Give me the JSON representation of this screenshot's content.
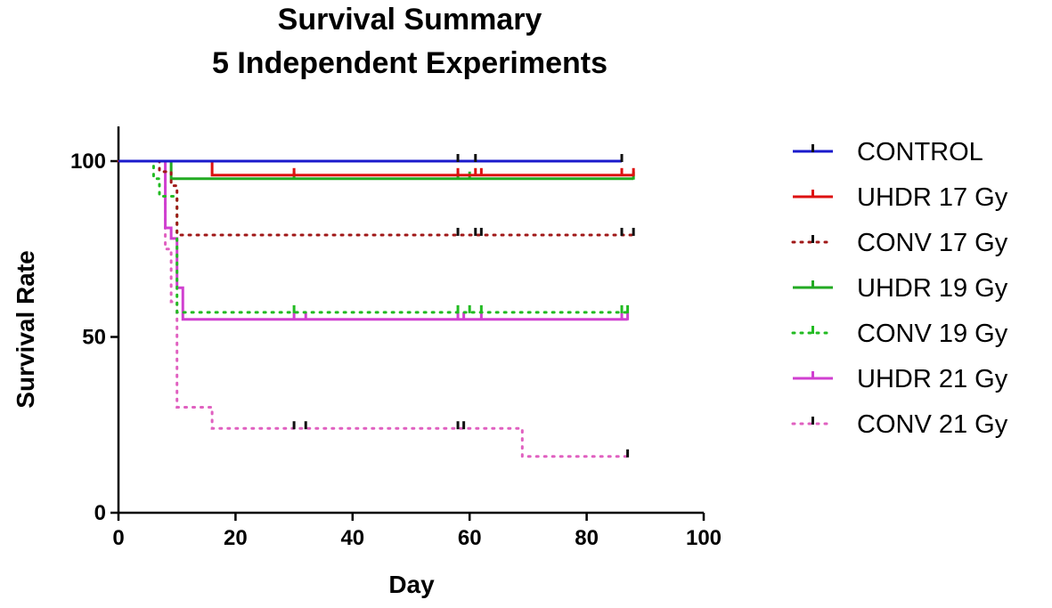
{
  "chart_data": {
    "type": "line",
    "subtype": "kaplan-meier-step",
    "title": "Survival Summary",
    "subtitle": "5  Independent  Experiments",
    "xlabel": "Day",
    "ylabel": "Survival Rate",
    "xlim": [
      0,
      100
    ],
    "ylim": [
      0,
      100
    ],
    "xticks": [
      0,
      20,
      40,
      60,
      80,
      100
    ],
    "yticks": [
      0,
      50,
      100
    ],
    "legend_position": "right",
    "series": [
      {
        "name": "CONTROL",
        "color": "#1a1acc",
        "style": "solid",
        "steps": [
          [
            0,
            100
          ],
          [
            86,
            100
          ]
        ],
        "censored": [
          [
            58,
            100
          ],
          [
            61,
            100
          ],
          [
            86,
            100
          ]
        ]
      },
      {
        "name": "UHDR 17 Gy",
        "color": "#dd1111",
        "style": "solid",
        "steps": [
          [
            0,
            100
          ],
          [
            16,
            96
          ],
          [
            88,
            96
          ]
        ],
        "censored": [
          [
            30,
            96
          ],
          [
            58,
            96
          ],
          [
            61,
            96
          ],
          [
            62,
            96
          ],
          [
            86,
            96
          ],
          [
            88,
            96
          ]
        ]
      },
      {
        "name": "CONV 17 Gy",
        "color": "#a01818",
        "style": "dotted",
        "steps": [
          [
            0,
            100
          ],
          [
            7,
            97
          ],
          [
            9,
            93
          ],
          [
            10,
            79
          ],
          [
            88,
            79
          ]
        ],
        "censored": [
          [
            58,
            79
          ],
          [
            61,
            79
          ],
          [
            62,
            79
          ],
          [
            86,
            79
          ],
          [
            88,
            79
          ]
        ]
      },
      {
        "name": "UHDR 19 Gy",
        "color": "#22aa22",
        "style": "solid",
        "steps": [
          [
            0,
            100
          ],
          [
            9,
            95
          ],
          [
            88,
            95
          ]
        ],
        "censored": [
          [
            30,
            95
          ],
          [
            58,
            95
          ],
          [
            60,
            95
          ],
          [
            88,
            95
          ]
        ]
      },
      {
        "name": "CONV 19 Gy",
        "color": "#22bb22",
        "style": "dotted",
        "steps": [
          [
            0,
            100
          ],
          [
            6,
            95
          ],
          [
            7,
            90
          ],
          [
            10,
            57
          ],
          [
            87,
            57
          ]
        ],
        "censored": [
          [
            30,
            57
          ],
          [
            58,
            57
          ],
          [
            60,
            57
          ],
          [
            62,
            57
          ],
          [
            86,
            57
          ],
          [
            87,
            57
          ]
        ]
      },
      {
        "name": "UHDR 21 Gy",
        "color": "#d040d0",
        "style": "solid",
        "steps": [
          [
            0,
            100
          ],
          [
            8,
            81
          ],
          [
            9,
            78
          ],
          [
            10,
            64
          ],
          [
            11,
            55
          ],
          [
            87,
            55
          ]
        ],
        "censored": [
          [
            30,
            55
          ],
          [
            32,
            55
          ],
          [
            58,
            55
          ],
          [
            59,
            55
          ],
          [
            62,
            55
          ],
          [
            86,
            55
          ],
          [
            87,
            55
          ]
        ]
      },
      {
        "name": "CONV 21 Gy",
        "color": "#e060c0",
        "style": "dotted",
        "steps": [
          [
            0,
            100
          ],
          [
            8,
            75
          ],
          [
            9,
            60
          ],
          [
            10,
            30
          ],
          [
            16,
            24
          ],
          [
            69,
            16
          ],
          [
            87,
            16
          ]
        ],
        "censored": [
          [
            30,
            24
          ],
          [
            32,
            24
          ],
          [
            58,
            24
          ],
          [
            59,
            24
          ],
          [
            87,
            16
          ]
        ]
      }
    ]
  }
}
